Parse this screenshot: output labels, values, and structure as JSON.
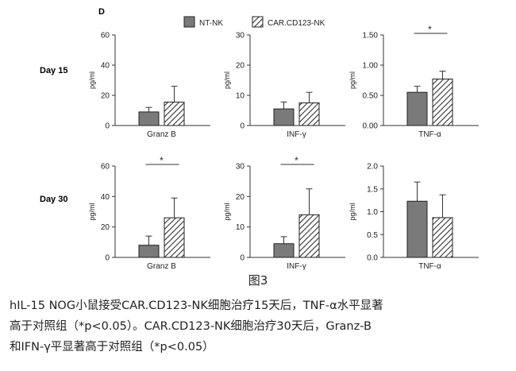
{
  "panel_letter": "D",
  "figure_label": "图3",
  "caption_lines": [
    "hIL-15 NOG小鼠接受CAR.CD123-NK细胞治疗15天后，TNF-α水平显著",
    "高于对照组（*p<0.05）。CAR.CD123-NK细胞治疗30天后，Granz-B",
    "和IFN-γ平显著高于对照组（*p<0.05）"
  ],
  "colors": {
    "nt_fill": "#7a7a7a",
    "car_hatch": "#333333",
    "bar_stroke": "#222222"
  },
  "chart_data": {
    "type": "bar",
    "legend": {
      "placement": "top",
      "entries": [
        "NT-NK",
        "CAR.CD123-NK"
      ]
    },
    "row_labels": [
      "Day 15",
      "Day 30"
    ],
    "panels": [
      {
        "row": 0,
        "col": 0,
        "category": "Granz B",
        "ylabel": "pg/ml",
        "ylim": [
          0,
          60
        ],
        "yticks": [
          "0",
          "20",
          "40",
          "60"
        ],
        "values": [
          9,
          15.5
        ],
        "errors": [
          3,
          10.5
        ],
        "significance": ""
      },
      {
        "row": 0,
        "col": 1,
        "category": "INF-γ",
        "ylabel": "pg/ml",
        "ylim": [
          0,
          30
        ],
        "yticks": [
          "0",
          "10",
          "20",
          "30"
        ],
        "values": [
          5.5,
          7.5
        ],
        "errors": [
          2.3,
          3.5
        ],
        "significance": ""
      },
      {
        "row": 0,
        "col": 2,
        "category": "TNF-α",
        "ylabel": "pg/ml",
        "ylim": [
          0,
          1.5
        ],
        "yticks": [
          "0.00",
          "0.50",
          "1.00",
          "1.50"
        ],
        "values": [
          0.55,
          0.77
        ],
        "errors": [
          0.1,
          0.13
        ],
        "significance": "*"
      },
      {
        "row": 1,
        "col": 0,
        "category": "Granz B",
        "ylabel": "pg/ml",
        "ylim": [
          0,
          60
        ],
        "yticks": [
          "0",
          "20",
          "40",
          "60"
        ],
        "values": [
          8,
          26
        ],
        "errors": [
          6,
          13
        ],
        "significance": "*"
      },
      {
        "row": 1,
        "col": 1,
        "category": "INF-γ",
        "ylabel": "pg/ml",
        "ylim": [
          0,
          30
        ],
        "yticks": [
          "0",
          "10",
          "20",
          "30"
        ],
        "values": [
          4.5,
          14
        ],
        "errors": [
          2.3,
          8.5
        ],
        "significance": "*"
      },
      {
        "row": 1,
        "col": 2,
        "category": "TNF-α",
        "ylabel": "pg/ml",
        "ylim": [
          0,
          2
        ],
        "yticks": [
          "0.0",
          "0.5",
          "1.0",
          "1.5",
          "2.0"
        ],
        "values": [
          1.23,
          0.87
        ],
        "errors": [
          0.42,
          0.5
        ],
        "significance": ""
      }
    ]
  }
}
